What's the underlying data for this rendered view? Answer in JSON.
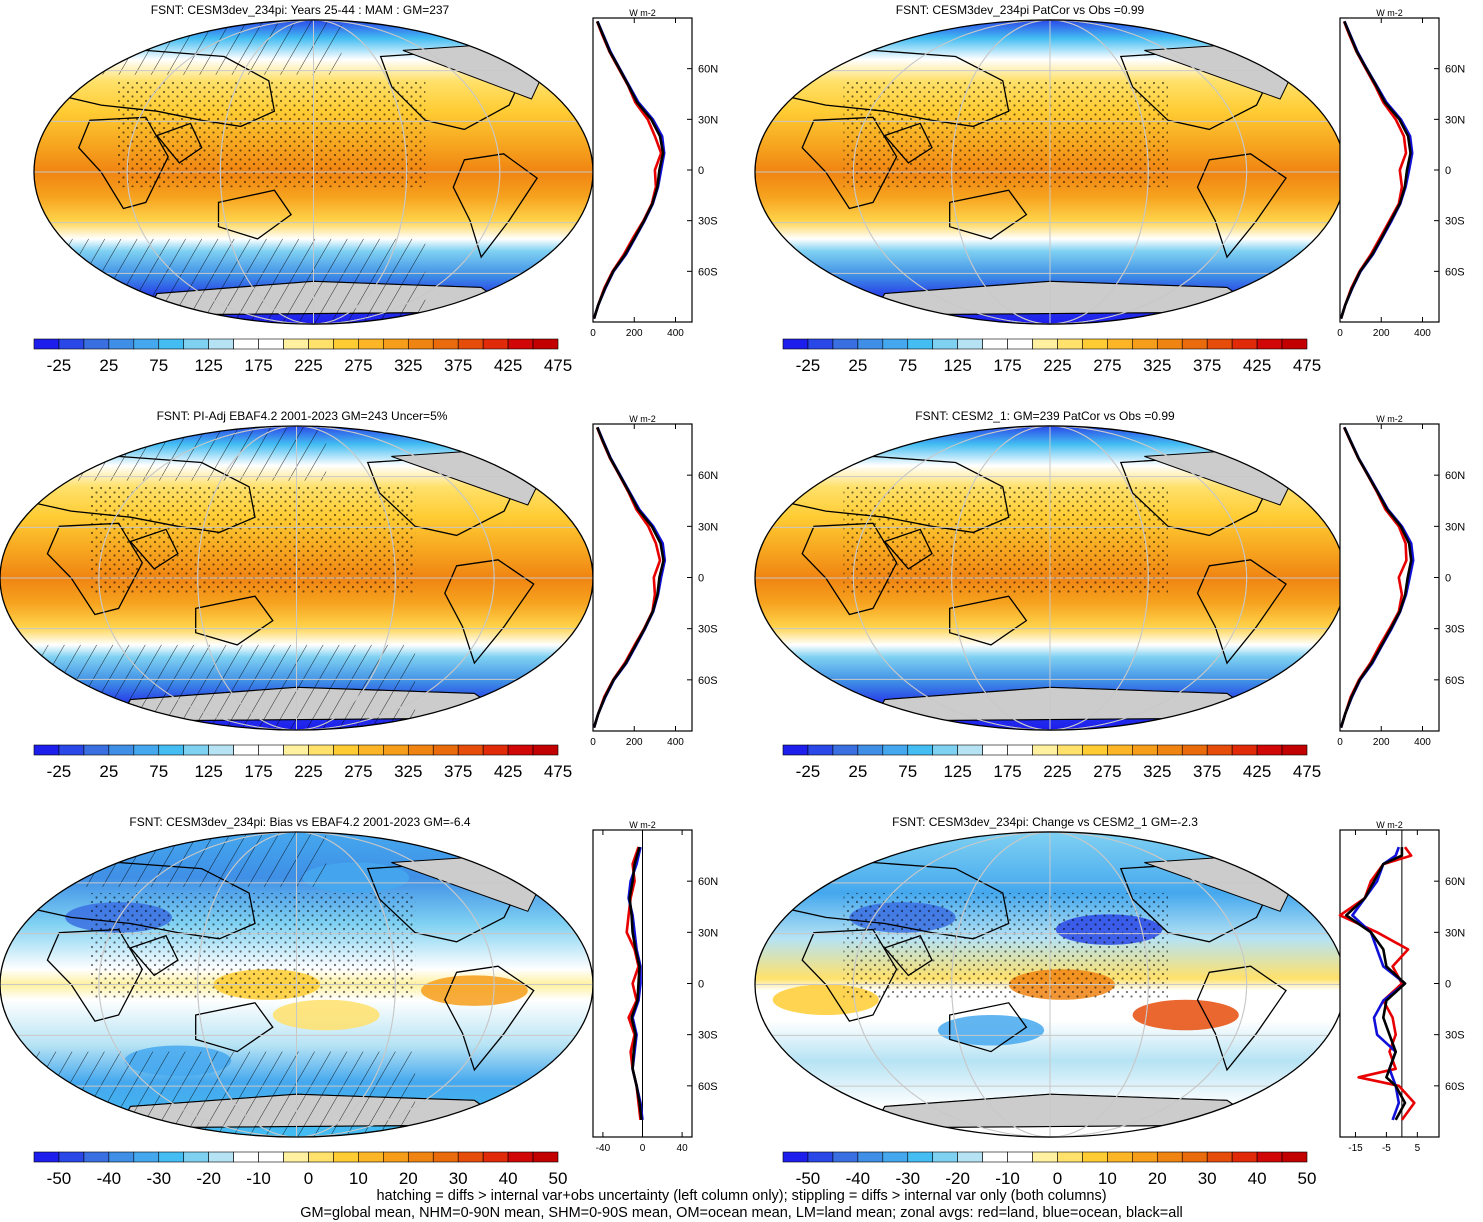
{
  "chart_data": [
    {
      "type": "heatmap",
      "title": "FSNT: CESM3dev_234pi: Years 25-44 : MAM : GM=237",
      "colorbar_ticks": [
        "-25",
        "25",
        "75",
        "125",
        "175",
        "225",
        "275",
        "325",
        "375",
        "425",
        "475"
      ],
      "zonal": {
        "units": "W m-2",
        "xticks": [
          "0",
          "200",
          "400"
        ],
        "xlim": [
          0,
          480
        ],
        "yticks": [
          "60N",
          "30N",
          "0",
          "30S",
          "60S"
        ],
        "lat": [
          -88,
          -80,
          -70,
          -60,
          -50,
          -40,
          -30,
          -20,
          -10,
          0,
          10,
          20,
          30,
          40,
          50,
          60,
          70,
          80,
          88
        ],
        "series": [
          {
            "name": "land",
            "color": "#e80000",
            "values": [
              5,
              25,
              55,
              95,
              150,
              195,
              245,
              285,
              305,
              300,
              330,
              300,
              265,
              205,
              170,
              125,
              80,
              45,
              20
            ]
          },
          {
            "name": "ocean",
            "color": "#1010d8",
            "values": [
              5,
              25,
              60,
              100,
              160,
              205,
              250,
              290,
              315,
              330,
              345,
              335,
              290,
              220,
              175,
              130,
              85,
              50,
              22
            ]
          },
          {
            "name": "all",
            "color": "#000000",
            "values": [
              5,
              25,
              58,
              98,
              156,
              202,
              248,
              288,
              312,
              322,
              340,
              325,
              282,
              214,
              172,
              128,
              82,
              48,
              21
            ]
          }
        ]
      }
    },
    {
      "type": "heatmap",
      "title": "FSNT: CESM3dev_234pi PatCor vs Obs =0.99",
      "colorbar_ticks": [
        "-25",
        "25",
        "75",
        "125",
        "175",
        "225",
        "275",
        "325",
        "375",
        "425",
        "475"
      ],
      "zonal": {
        "units": "W m-2",
        "xticks": [
          "0",
          "200",
          "400"
        ],
        "xlim": [
          0,
          480
        ],
        "yticks": [
          "60N",
          "30N",
          "0",
          "30S",
          "60S"
        ],
        "lat": [
          -88,
          -80,
          -70,
          -60,
          -50,
          -40,
          -30,
          -20,
          -10,
          0,
          10,
          20,
          30,
          40,
          50,
          60,
          70,
          80,
          88
        ],
        "series": [
          {
            "name": "land",
            "color": "#e80000",
            "values": [
              5,
              25,
              55,
              95,
              150,
              195,
              240,
              285,
              300,
              290,
              320,
              310,
              270,
              210,
              170,
              125,
              80,
              45,
              20
            ]
          },
          {
            "name": "ocean",
            "color": "#1010d8",
            "values": [
              5,
              25,
              60,
              100,
              160,
              205,
              250,
              292,
              318,
              335,
              350,
              340,
              295,
              225,
              178,
              130,
              85,
              50,
              22
            ]
          },
          {
            "name": "all",
            "color": "#000000",
            "values": [
              5,
              25,
              58,
              98,
              156,
              202,
              246,
              290,
              314,
              325,
              342,
              330,
              288,
              218,
              175,
              128,
              82,
              48,
              21
            ]
          }
        ]
      }
    },
    {
      "type": "heatmap",
      "title": "FSNT: PI-Adj EBAF4.2 2001-2023 GM=243 Uncer=5%",
      "colorbar_ticks": [
        "-25",
        "25",
        "75",
        "125",
        "175",
        "225",
        "275",
        "325",
        "375",
        "425",
        "475"
      ],
      "zonal": {
        "units": "W m-2",
        "xticks": [
          "0",
          "200",
          "400"
        ],
        "xlim": [
          0,
          480
        ],
        "yticks": [
          "60N",
          "30N",
          "0",
          "30S",
          "60S"
        ],
        "lat": [
          -88,
          -80,
          -70,
          -60,
          -50,
          -40,
          -30,
          -20,
          -10,
          0,
          10,
          20,
          30,
          40,
          50,
          60,
          70,
          80,
          88
        ],
        "series": [
          {
            "name": "land",
            "color": "#e80000",
            "values": [
              5,
              25,
              55,
              98,
              155,
              200,
              248,
              288,
              300,
              295,
              325,
              305,
              268,
              210,
              172,
              128,
              82,
              46,
              20
            ]
          },
          {
            "name": "ocean",
            "color": "#1010d8",
            "values": [
              5,
              25,
              60,
              102,
              163,
              208,
              252,
              292,
              315,
              330,
              348,
              338,
              292,
              224,
              178,
              132,
              86,
              50,
              22
            ]
          },
          {
            "name": "all",
            "color": "#000000",
            "values": [
              5,
              25,
              58,
              100,
              160,
              205,
              250,
              290,
              312,
              322,
              342,
              328,
              285,
              218,
              175,
              130,
              84,
              48,
              21
            ]
          }
        ]
      }
    },
    {
      "type": "heatmap",
      "title": "FSNT: CESM2_1: GM=239 PatCor vs Obs =0.99",
      "colorbar_ticks": [
        "-25",
        "25",
        "75",
        "125",
        "175",
        "225",
        "275",
        "325",
        "375",
        "425",
        "475"
      ],
      "zonal": {
        "units": "W m-2",
        "xticks": [
          "0",
          "200",
          "400"
        ],
        "xlim": [
          0,
          480
        ],
        "yticks": [
          "60N",
          "30N",
          "0",
          "30S",
          "60S"
        ],
        "lat": [
          -88,
          -80,
          -70,
          -60,
          -50,
          -40,
          -30,
          -20,
          -10,
          0,
          10,
          20,
          30,
          40,
          50,
          60,
          70,
          80,
          88
        ],
        "series": [
          {
            "name": "land",
            "color": "#e80000",
            "values": [
              5,
              25,
              52,
              92,
              148,
              192,
              240,
              285,
              300,
              285,
              322,
              318,
              285,
              220,
              180,
              135,
              88,
              50,
              20
            ]
          },
          {
            "name": "ocean",
            "color": "#1010d8",
            "values": [
              5,
              25,
              58,
              98,
              158,
              203,
              250,
              292,
              320,
              338,
              355,
              345,
              300,
              232,
              185,
              138,
              90,
              52,
              22
            ]
          },
          {
            "name": "all",
            "color": "#000000",
            "values": [
              5,
              25,
              56,
              96,
              154,
              200,
              246,
              290,
              316,
              328,
              345,
              335,
              295,
              228,
              183,
              136,
              89,
              51,
              21
            ]
          }
        ]
      }
    },
    {
      "type": "heatmap",
      "title": "FSNT: CESM3dev_234pi: Bias vs EBAF4.2 2001-2023 GM=-6.4",
      "colorbar_ticks": [
        "-50",
        "-40",
        "-30",
        "-20",
        "-10",
        "0",
        "10",
        "20",
        "30",
        "40",
        "50"
      ],
      "zonal": {
        "units": "W m-2",
        "xticks": [
          "-40",
          "0",
          "40"
        ],
        "xlim": [
          -50,
          50
        ],
        "yticks": [
          "60N",
          "30N",
          "0",
          "30S",
          "60S"
        ],
        "lat": [
          -80,
          -70,
          -60,
          -50,
          -40,
          -30,
          -20,
          -10,
          0,
          10,
          20,
          30,
          40,
          50,
          60,
          70,
          80
        ],
        "series": [
          {
            "name": "land",
            "color": "#e80000",
            "values": [
              -2,
              -4,
              -6,
              -10,
              -12,
              -8,
              -14,
              -6,
              -10,
              -4,
              -8,
              -16,
              -14,
              -12,
              -8,
              -10,
              -4
            ]
          },
          {
            "name": "ocean",
            "color": "#1010d8",
            "values": [
              0,
              -2,
              -6,
              -10,
              -8,
              -6,
              -10,
              -4,
              -2,
              -2,
              -6,
              -8,
              -10,
              -14,
              -12,
              -6,
              -2
            ]
          },
          {
            "name": "all",
            "color": "#000000",
            "values": [
              -1,
              -3,
              -6,
              -10,
              -9,
              -7,
              -11,
              -5,
              -4,
              -3,
              -7,
              -10,
              -11,
              -13,
              -10,
              -8,
              -3
            ]
          }
        ]
      }
    },
    {
      "type": "heatmap",
      "title": "FSNT: CESM3dev_234pi: Change vs CESM2_1 GM=-2.3",
      "colorbar_ticks": [
        "-50",
        "-40",
        "-30",
        "-20",
        "-10",
        "0",
        "10",
        "20",
        "30",
        "40",
        "50"
      ],
      "zonal": {
        "units": "W m-2",
        "xticks": [
          "-15",
          "-5",
          "5"
        ],
        "xlim": [
          -20,
          12
        ],
        "yticks": [
          "60N",
          "30N",
          "0",
          "30S",
          "60S"
        ],
        "lat": [
          -80,
          -70,
          -60,
          -55,
          -50,
          -40,
          -30,
          -20,
          -10,
          0,
          10,
          20,
          30,
          40,
          50,
          60,
          70,
          75,
          80
        ],
        "series": [
          {
            "name": "land",
            "color": "#e80000",
            "values": [
              0,
              4,
              -1,
              -14,
              -2,
              -4,
              -2,
              -3,
              -6,
              0,
              -3,
              2,
              -8,
              -20,
              -12,
              -10,
              -6,
              3,
              1
            ]
          },
          {
            "name": "ocean",
            "color": "#1010d8",
            "values": [
              -3,
              -1,
              -2,
              -3,
              -4,
              -2,
              -8,
              -9,
              -6,
              1,
              -6,
              -8,
              -10,
              -16,
              -12,
              -8,
              -6,
              -2,
              -1
            ]
          },
          {
            "name": "all",
            "color": "#000000",
            "values": [
              -2,
              1,
              -2,
              -5,
              -4,
              -2,
              -4,
              -6,
              -5,
              1,
              -5,
              -6,
              -10,
              -18,
              -12,
              -9,
              -6,
              0,
              0
            ]
          }
        ]
      }
    }
  ],
  "colorbar_colors": [
    "#1d1dec",
    "#2a48e8",
    "#3a6fe2",
    "#3f8fe6",
    "#45a8ee",
    "#43bdf2",
    "#7fd1f2",
    "#b6e3f4",
    "#ffffff",
    "#ffffff",
    "#fff1a0",
    "#ffe16b",
    "#ffcc33",
    "#fbb527",
    "#f69d1a",
    "#f08412",
    "#ea6b0c",
    "#e64c0a",
    "#e02a08",
    "#d10606",
    "#c20000"
  ],
  "footer": {
    "line1": "hatching = diffs > internal var+obs uncertainty (left column only); stippling = diffs > internal var only (both columns)",
    "line2": "GM=global mean, NHM=0-90N mean, SHM=0-90S mean, OM=ocean mean, LM=land mean; zonal avgs: red=land, blue=ocean, black=all"
  }
}
